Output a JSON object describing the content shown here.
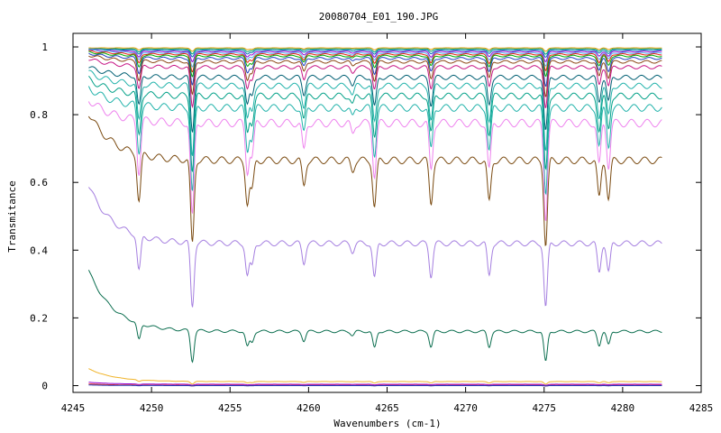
{
  "chart_data": {
    "type": "line",
    "title": "20080704_E01_190.JPG",
    "xlabel": "Wavenumbers (cm-1)",
    "ylabel": "Transmitance",
    "xlim": [
      4245,
      4285
    ],
    "ylim": [
      -0.02,
      1.04
    ],
    "x_ticks": [
      4245,
      4250,
      4255,
      4260,
      4265,
      4270,
      4275,
      4280,
      4285
    ],
    "y_ticks": [
      0,
      0.2,
      0.4,
      0.6,
      0.8,
      1
    ],
    "grid": false,
    "legend": "none",
    "x_range_data": [
      4246,
      4282.5
    ],
    "absorption_lines_cm1": [
      4249.2,
      4252.6,
      4256.1,
      4256.4,
      4259.7,
      4262.8,
      4264.2,
      4267.8,
      4271.5,
      4275.1,
      4278.5,
      4279.1
    ],
    "line_relative_depths": [
      0.55,
      1.0,
      0.5,
      0.35,
      0.3,
      0.12,
      0.55,
      0.5,
      0.5,
      1.0,
      0.45,
      0.45
    ],
    "series": [
      {
        "baseline": 0.997,
        "start_offset": 0.0,
        "line_depth": 0.01,
        "color": "#e69f00"
      },
      {
        "baseline": 0.994,
        "start_offset": 0.0,
        "line_depth": 0.015,
        "color": "#009e73"
      },
      {
        "baseline": 0.99,
        "start_offset": 0.005,
        "line_depth": 0.02,
        "color": "#0072b2"
      },
      {
        "baseline": 0.986,
        "start_offset": 0.005,
        "line_depth": 0.03,
        "color": "#9400d3"
      },
      {
        "baseline": 0.982,
        "start_offset": 0.01,
        "line_depth": 0.04,
        "color": "#56b4e9"
      },
      {
        "baseline": 0.978,
        "start_offset": 0.01,
        "line_depth": 0.05,
        "color": "#e51e10"
      },
      {
        "baseline": 0.973,
        "start_offset": 0.012,
        "line_depth": 0.06,
        "color": "#00aa00"
      },
      {
        "baseline": 0.966,
        "start_offset": 0.015,
        "line_depth": 0.08,
        "color": "#1f3fbf"
      },
      {
        "baseline": 0.956,
        "start_offset": 0.02,
        "line_depth": 0.1,
        "color": "#8b4513"
      },
      {
        "baseline": 0.94,
        "start_offset": 0.025,
        "line_depth": 0.12,
        "color": "#c71585"
      },
      {
        "baseline": 0.91,
        "start_offset": 0.03,
        "line_depth": 0.16,
        "color": "#005f73"
      },
      {
        "baseline": 0.885,
        "start_offset": 0.04,
        "line_depth": 0.2,
        "color": "#20b2aa"
      },
      {
        "baseline": 0.855,
        "start_offset": 0.05,
        "line_depth": 0.22,
        "color": "#00a087"
      },
      {
        "baseline": 0.82,
        "start_offset": 0.06,
        "line_depth": 0.25,
        "color": "#20b2aa"
      },
      {
        "baseline": 0.775,
        "start_offset": 0.07,
        "line_depth": 0.28,
        "color": "#ee82ee"
      },
      {
        "baseline": 0.665,
        "start_offset": 0.14,
        "line_depth": 0.25,
        "color": "#7a4a10"
      },
      {
        "baseline": 0.42,
        "start_offset": 0.17,
        "line_depth": 0.19,
        "color": "#a57fe0"
      },
      {
        "baseline": 0.16,
        "start_offset": 0.18,
        "line_depth": 0.09,
        "color": "#0b6e4f"
      },
      {
        "baseline": 0.012,
        "start_offset": 0.038,
        "line_depth": 0.008,
        "color": "#f0b429"
      },
      {
        "baseline": 0.004,
        "start_offset": 0.006,
        "line_depth": 0.003,
        "color": "#9400d3"
      },
      {
        "baseline": 0.001,
        "start_offset": 0.004,
        "line_depth": 0.002,
        "color": "#e51e10"
      },
      {
        "baseline": 0.0,
        "start_offset": 0.002,
        "line_depth": 0.001,
        "color": "#1f3fbf"
      }
    ]
  }
}
